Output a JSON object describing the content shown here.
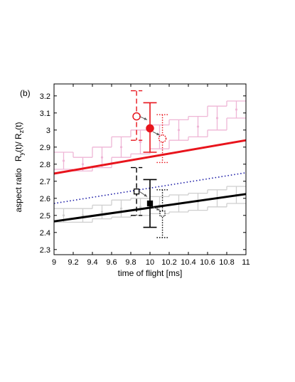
{
  "chart_data": {
    "type": "line",
    "panel_label": "(b)",
    "xlabel": "time of flight [ms]",
    "ylabel_prefix": "aspect ratio",
    "ylabel_math": {
      "r1": "R",
      "s1": "y",
      "mid": "(t)/ R",
      "s2": "z",
      "end": "(t)"
    },
    "xlim": [
      9,
      11
    ],
    "ylim": [
      2.27,
      3.27
    ],
    "x_ticks": [
      9,
      9.2,
      9.4,
      9.6,
      9.8,
      10,
      10.2,
      10.4,
      10.6,
      10.8,
      11
    ],
    "x_tick_labels": [
      "9",
      "9.2",
      "9.4",
      "9.6",
      "9.8",
      "10",
      "10.2",
      "10.4",
      "10.6",
      "10.8",
      "11"
    ],
    "y_ticks": [
      2.3,
      2.4,
      2.5,
      2.6,
      2.7,
      2.8,
      2.9,
      3.0,
      3.1,
      3.2
    ],
    "y_tick_labels": [
      "2.3",
      "2.4",
      "2.5",
      "2.6",
      "2.7",
      "2.8",
      "2.9",
      "3",
      "3.1",
      "3.2"
    ],
    "grid": false,
    "colors": {
      "red": "#e8141c",
      "black": "#000000",
      "blue": "#1a1aa6",
      "pink": "#efb6d6",
      "gray": "#cfcfcf",
      "arrow": "#555555"
    },
    "series": [
      {
        "style": "red-solid",
        "x": [
          9,
          11
        ],
        "y": [
          2.745,
          2.94
        ]
      },
      {
        "style": "blue-dotted",
        "x": [
          9,
          11
        ],
        "y": [
          2.57,
          2.75
        ]
      },
      {
        "style": "black-solid",
        "x": [
          9,
          11
        ],
        "y": [
          2.465,
          2.625
        ]
      }
    ],
    "background_steps": [
      {
        "style": "pink",
        "segments": [
          {
            "x0": 9.0,
            "x1": 9.2,
            "y": 2.82,
            "err": 0.05
          },
          {
            "x0": 9.2,
            "x1": 9.4,
            "y": 2.8,
            "err": 0.04
          },
          {
            "x0": 9.4,
            "x1": 9.6,
            "y": 2.84,
            "err": 0.06
          },
          {
            "x0": 9.6,
            "x1": 9.8,
            "y": 2.9,
            "err": 0.06
          },
          {
            "x0": 9.8,
            "x1": 10.0,
            "y": 2.93,
            "err": 0.07
          },
          {
            "x0": 10.0,
            "x1": 10.2,
            "y": 2.96,
            "err": 0.07
          },
          {
            "x0": 10.2,
            "x1": 10.4,
            "y": 3.0,
            "err": 0.06
          },
          {
            "x0": 10.4,
            "x1": 10.6,
            "y": 3.02,
            "err": 0.06
          },
          {
            "x0": 10.6,
            "x1": 10.8,
            "y": 3.07,
            "err": 0.07
          },
          {
            "x0": 10.8,
            "x1": 11.0,
            "y": 3.12,
            "err": 0.05
          }
        ]
      },
      {
        "style": "gray",
        "segments": [
          {
            "x0": 9.0,
            "x1": 9.2,
            "y": 2.5,
            "err": 0.04
          },
          {
            "x0": 9.2,
            "x1": 9.4,
            "y": 2.5,
            "err": 0.04
          },
          {
            "x0": 9.4,
            "x1": 9.6,
            "y": 2.52,
            "err": 0.04
          },
          {
            "x0": 9.6,
            "x1": 9.8,
            "y": 2.54,
            "err": 0.05
          },
          {
            "x0": 9.8,
            "x1": 10.0,
            "y": 2.55,
            "err": 0.05
          },
          {
            "x0": 10.0,
            "x1": 10.2,
            "y": 2.56,
            "err": 0.05
          },
          {
            "x0": 10.2,
            "x1": 10.4,
            "y": 2.57,
            "err": 0.05
          },
          {
            "x0": 10.4,
            "x1": 10.6,
            "y": 2.58,
            "err": 0.05
          },
          {
            "x0": 10.6,
            "x1": 10.8,
            "y": 2.6,
            "err": 0.05
          },
          {
            "x0": 10.8,
            "x1": 11.0,
            "y": 2.62,
            "err": 0.05
          }
        ]
      }
    ],
    "points": [
      {
        "style": "red-open-circle",
        "x": 9.86,
        "y": 3.08,
        "err_lo": 2.94,
        "err_hi": 3.23,
        "line": "dashed",
        "cap_x0": 9.8,
        "cap_x1": 9.92
      },
      {
        "style": "red-filled-circle",
        "x": 10.0,
        "y": 3.01,
        "err_lo": 2.87,
        "err_hi": 3.16,
        "line": "solid",
        "cap_x0": 9.93,
        "cap_x1": 10.07
      },
      {
        "style": "red-dotted-circle",
        "x": 10.13,
        "y": 2.95,
        "err_lo": 2.81,
        "err_hi": 3.09,
        "line": "dotted",
        "cap_x0": 10.07,
        "cap_x1": 10.19
      },
      {
        "style": "black-open-square",
        "x": 9.86,
        "y": 2.64,
        "err_lo": 2.5,
        "err_hi": 2.78,
        "line": "dashed",
        "cap_x0": 9.8,
        "cap_x1": 9.92
      },
      {
        "style": "black-filled-square",
        "x": 10.0,
        "y": 2.57,
        "err_lo": 2.43,
        "err_hi": 2.71,
        "line": "solid",
        "cap_x0": 9.93,
        "cap_x1": 10.07
      },
      {
        "style": "black-dotted-square",
        "x": 10.13,
        "y": 2.51,
        "err_lo": 2.37,
        "err_hi": 2.65,
        "line": "dotted",
        "cap_x0": 10.07,
        "cap_x1": 10.19
      }
    ],
    "arrows": [
      {
        "from": [
          9.89,
          3.08
        ],
        "to": [
          9.97,
          3.06
        ]
      },
      {
        "from": [
          10.03,
          2.99
        ],
        "to": [
          10.1,
          2.97
        ]
      },
      {
        "from": [
          9.89,
          2.64
        ],
        "to": [
          9.97,
          2.61
        ]
      },
      {
        "from": [
          10.03,
          2.55
        ],
        "to": [
          10.1,
          2.53
        ]
      }
    ]
  }
}
